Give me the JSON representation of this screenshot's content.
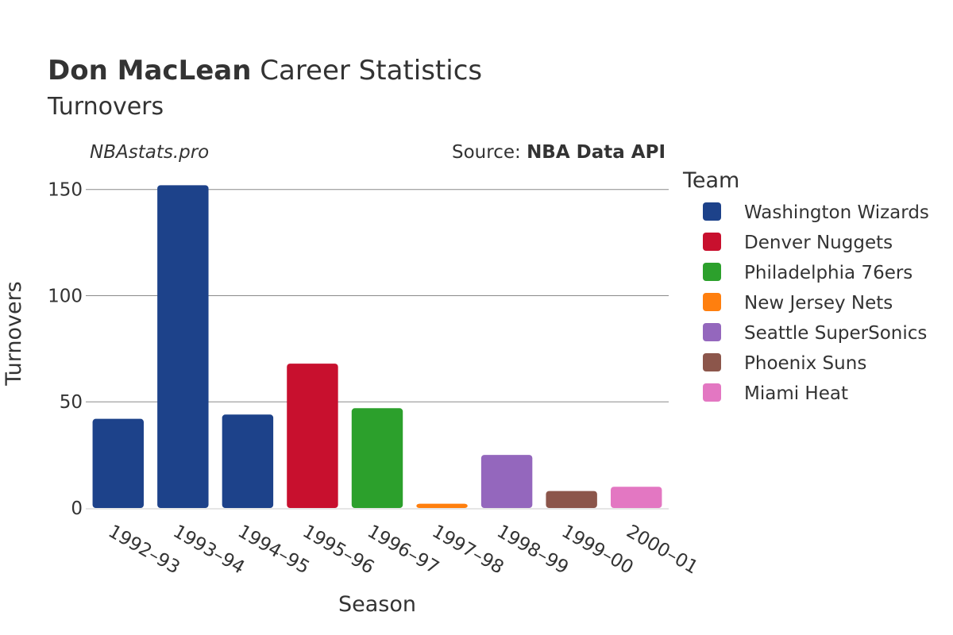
{
  "header": {
    "player_name": "Don MacLean",
    "title_rest": " Career Statistics",
    "subtitle": "Turnovers",
    "watermark": "NBAstats.pro",
    "source_prefix": "Source: ",
    "source_name": "NBA Data API"
  },
  "chart_data": {
    "type": "bar",
    "xlabel": "Season",
    "ylabel": "Turnovers",
    "ylim": [
      0,
      157
    ],
    "yticks": [
      0,
      50,
      100,
      150
    ],
    "grid": true,
    "legend_title": "Team",
    "legend_position": "right",
    "categories": [
      "1992–93",
      "1993–94",
      "1994–95",
      "1995–96",
      "1996–97",
      "1997–98",
      "1998–99",
      "1999–00",
      "2000–01"
    ],
    "values": [
      42,
      152,
      44,
      68,
      47,
      2,
      25,
      8,
      10
    ],
    "teams": [
      "Washington Wizards",
      "Washington Wizards",
      "Washington Wizards",
      "Denver Nuggets",
      "Philadelphia 76ers",
      "New Jersey Nets",
      "Seattle SuperSonics",
      "Phoenix Suns",
      "Miami Heat"
    ],
    "series": [
      {
        "name": "Washington Wizards",
        "color": "#1d428a"
      },
      {
        "name": "Denver Nuggets",
        "color": "#c8102e"
      },
      {
        "name": "Philadelphia 76ers",
        "color": "#2ca02c"
      },
      {
        "name": "New Jersey Nets",
        "color": "#ff7f0e"
      },
      {
        "name": "Seattle SuperSonics",
        "color": "#9467bd"
      },
      {
        "name": "Phoenix Suns",
        "color": "#8c564b"
      },
      {
        "name": "Miami Heat",
        "color": "#e377c2"
      }
    ]
  }
}
